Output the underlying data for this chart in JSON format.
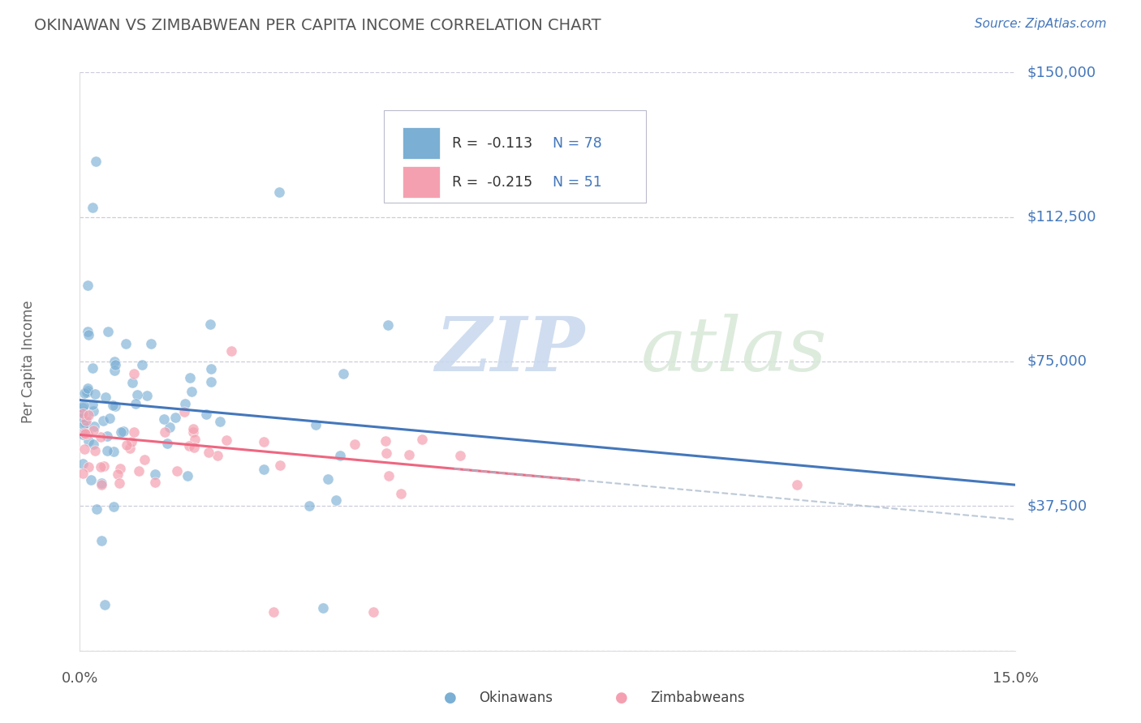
{
  "title": "OKINAWAN VS ZIMBABWEAN PER CAPITA INCOME CORRELATION CHART",
  "source": "Source: ZipAtlas.com",
  "ylabel": "Per Capita Income",
  "yticks": [
    0,
    37500,
    75000,
    112500,
    150000
  ],
  "ytick_labels": [
    "",
    "$37,500",
    "$75,000",
    "$112,500",
    "$150,000"
  ],
  "xmin": 0.0,
  "xmax": 15.0,
  "ymin": 0,
  "ymax": 150000,
  "watermark_zip": "ZIP",
  "watermark_atlas": "atlas",
  "legend_r1": "R =  -0.113",
  "legend_n1": "N = 78",
  "legend_r2": "R =  -0.215",
  "legend_n2": "N = 51",
  "blue_color": "#7BAFD4",
  "pink_color": "#F4A0B0",
  "line_blue": "#4477BB",
  "line_pink": "#EE6680",
  "line_dash": "#AABBCC",
  "text_blue": "#4477BB",
  "text_dark": "#333333",
  "title_color": "#555555",
  "grid_color": "#CCCCDD",
  "source_color": "#4477BB",
  "ok_trend_x0": 0.0,
  "ok_trend_y0": 65000,
  "ok_trend_x1": 15.0,
  "ok_trend_y1": 43000,
  "zim_trend_x0": 0.0,
  "zim_trend_y0": 56000,
  "zim_trend_x1": 15.0,
  "zim_trend_y1": 34000,
  "zim_solid_end": 8.0,
  "zim_dash_start": 6.0
}
